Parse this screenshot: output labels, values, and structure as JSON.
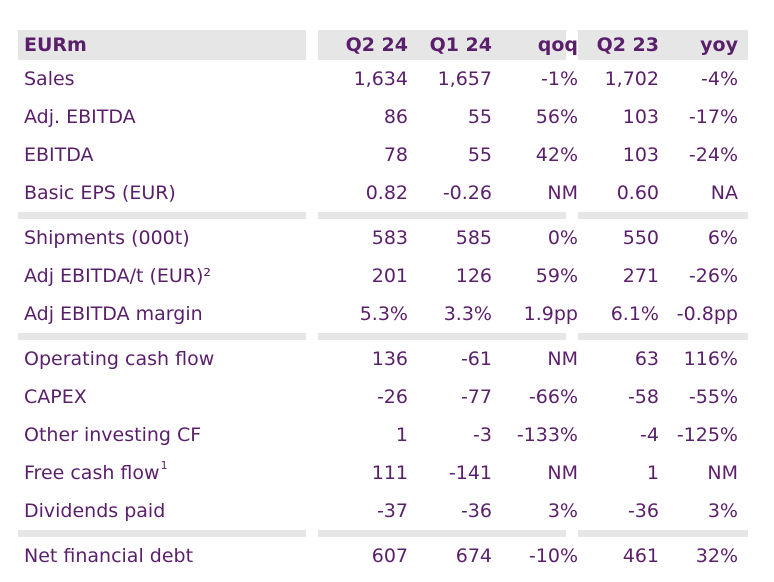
{
  "header": {
    "label": "EURm",
    "q2_24": "Q2 24",
    "q1_24": "Q1 24",
    "qoq": "qoq",
    "q2_23": "Q2 23",
    "yoy": "yoy"
  },
  "groups": [
    {
      "rows": [
        {
          "label": "Sales",
          "sup": "",
          "q2_24": "1,634",
          "q1_24": "1,657",
          "qoq": "-1%",
          "q2_23": "1,702",
          "yoy": "-4%"
        },
        {
          "label": "Adj. EBITDA",
          "sup": "",
          "q2_24": "86",
          "q1_24": "55",
          "qoq": "56%",
          "q2_23": "103",
          "yoy": "-17%"
        },
        {
          "label": "EBITDA",
          "sup": "",
          "q2_24": "78",
          "q1_24": "55",
          "qoq": "42%",
          "q2_23": "103",
          "yoy": "-24%"
        },
        {
          "label": "Basic EPS (EUR)",
          "sup": "",
          "q2_24": "0.82",
          "q1_24": "-0.26",
          "qoq": "NM",
          "q2_23": "0.60",
          "yoy": "NA"
        }
      ]
    },
    {
      "rows": [
        {
          "label": "Shipments (000t)",
          "sup": "",
          "q2_24": "583",
          "q1_24": "585",
          "qoq": "0%",
          "q2_23": "550",
          "yoy": "6%"
        },
        {
          "label": "Adj EBITDA/t (EUR)²",
          "sup": "",
          "q2_24": "201",
          "q1_24": "126",
          "qoq": "59%",
          "q2_23": "271",
          "yoy": "-26%"
        },
        {
          "label": "Adj EBITDA margin",
          "sup": "",
          "q2_24": "5.3%",
          "q1_24": "3.3%",
          "qoq": "1.9pp",
          "q2_23": "6.1%",
          "yoy": "-0.8pp"
        }
      ]
    },
    {
      "rows": [
        {
          "label": "Operating cash flow",
          "sup": "",
          "q2_24": "136",
          "q1_24": "-61",
          "qoq": "NM",
          "q2_23": "63",
          "yoy": "116%"
        },
        {
          "label": "CAPEX",
          "sup": "",
          "q2_24": "-26",
          "q1_24": "-77",
          "qoq": "-66%",
          "q2_23": "-58",
          "yoy": "-55%"
        },
        {
          "label": "Other investing CF",
          "sup": "",
          "q2_24": "1",
          "q1_24": "-3",
          "qoq": "-133%",
          "q2_23": "-4",
          "yoy": "-125%"
        },
        {
          "label": "Free cash flow",
          "sup": "1",
          "q2_24": "111",
          "q1_24": "-141",
          "qoq": "NM",
          "q2_23": "1",
          "yoy": "NM"
        },
        {
          "label": "Dividends paid",
          "sup": "",
          "q2_24": "-37",
          "q1_24": "-36",
          "qoq": "3%",
          "q2_23": "-36",
          "yoy": "3%"
        }
      ]
    },
    {
      "rows": [
        {
          "label": "Net financial debt",
          "sup": "",
          "q2_24": "607",
          "q1_24": "674",
          "qoq": "-10%",
          "q2_23": "461",
          "yoy": "32%"
        }
      ]
    }
  ]
}
